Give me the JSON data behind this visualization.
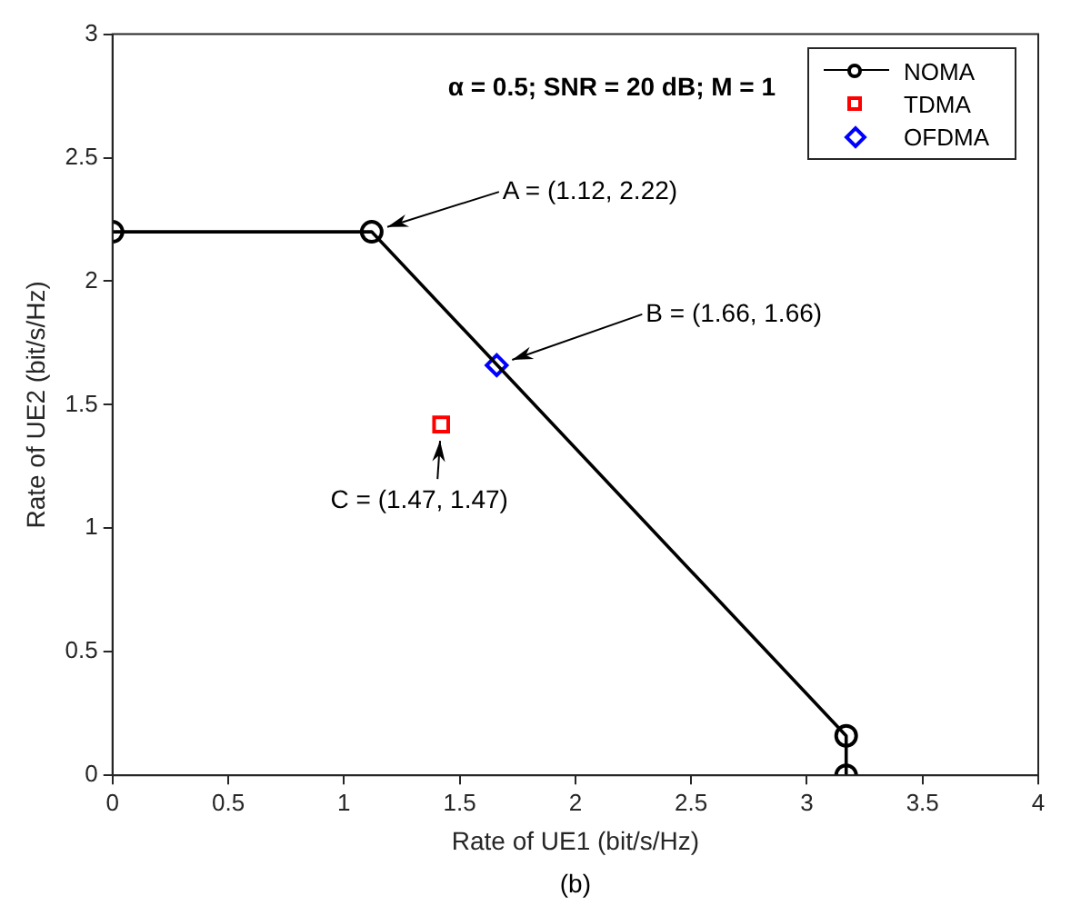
{
  "chart_data": {
    "type": "line",
    "title": "α = 0.5; SNR = 20 dB; M = 1",
    "xlabel": "Rate of UE1 (bit/s/Hz)",
    "ylabel": "Rate of UE2 (bit/s/Hz)",
    "series": [
      {
        "name": "NOMA",
        "color": "#000000",
        "marker": "circle",
        "x": [
          0,
          1.12,
          3.17,
          3.17
        ],
        "values": [
          2.2,
          2.2,
          0.16,
          0
        ]
      },
      {
        "name": "TDMA",
        "type": "scatter",
        "color": "#ff0000",
        "marker": "square",
        "x": [
          1.42
        ],
        "values": [
          1.42
        ]
      },
      {
        "name": "OFDMA",
        "type": "scatter",
        "color": "#0000ff",
        "marker": "diamond",
        "x": [
          1.66
        ],
        "values": [
          1.66
        ]
      }
    ],
    "annotations": [
      {
        "text": "A = (1.12, 2.22)",
        "x": 1.12,
        "y": 2.2
      },
      {
        "text": "B = (1.66, 1.66)",
        "x": 1.66,
        "y": 1.66
      },
      {
        "text": "C = (1.47, 1.47)",
        "x": 1.42,
        "y": 1.42
      },
      "(b)"
    ],
    "xlim": [
      0,
      4
    ],
    "xticks": [
      0,
      0.5,
      1,
      1.5,
      2,
      2.5,
      3,
      3.5,
      4
    ],
    "ylim": [
      0,
      3
    ],
    "yticks": [
      0,
      0.5,
      1,
      1.5,
      2,
      2.5,
      3
    ],
    "grid": false,
    "legend": "top right"
  }
}
